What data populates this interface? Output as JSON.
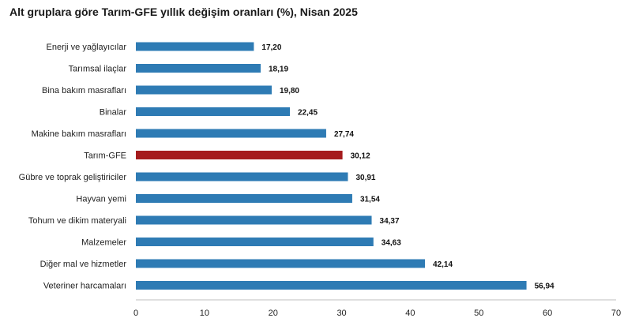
{
  "title": "Alt gruplara göre Tarım-GFE yıllık değişim oranları (%), Nisan 2025",
  "chart_data": {
    "type": "bar",
    "orientation": "horizontal",
    "title": "Alt gruplara göre Tarım-GFE yıllık değişim oranları (%), Nisan 2025",
    "categories": [
      "Enerji  ve yağlayıcılar",
      "Tarımsal ilaçlar",
      "Bina bakım masrafları",
      "Binalar",
      "Makine bakım masrafları",
      "Tarım-GFE",
      "Gübre ve toprak geliştiriciler",
      "Hayvan yemi",
      "Tohum ve dikim materyali",
      "Malzemeler",
      "Diğer mal ve hizmetler",
      "Veteriner harcamaları"
    ],
    "values": [
      17.2,
      18.19,
      19.8,
      22.45,
      27.74,
      30.12,
      30.91,
      31.54,
      34.37,
      34.63,
      42.14,
      56.94
    ],
    "value_labels": [
      "17,20",
      "18,19",
      "19,80",
      "22,45",
      "27,74",
      "30,12",
      "30,91",
      "31,54",
      "34,37",
      "34,63",
      "42,14",
      "56,94"
    ],
    "highlight_category": "Tarım-GFE",
    "xlim": [
      0,
      70
    ],
    "xticks": [
      0,
      10,
      20,
      30,
      40,
      50,
      60,
      70
    ],
    "grid": false,
    "legend": "none",
    "colors": {
      "bar": "#2e7bb4",
      "highlight": "#a51c1e",
      "axis": "#bfbfbf"
    }
  }
}
